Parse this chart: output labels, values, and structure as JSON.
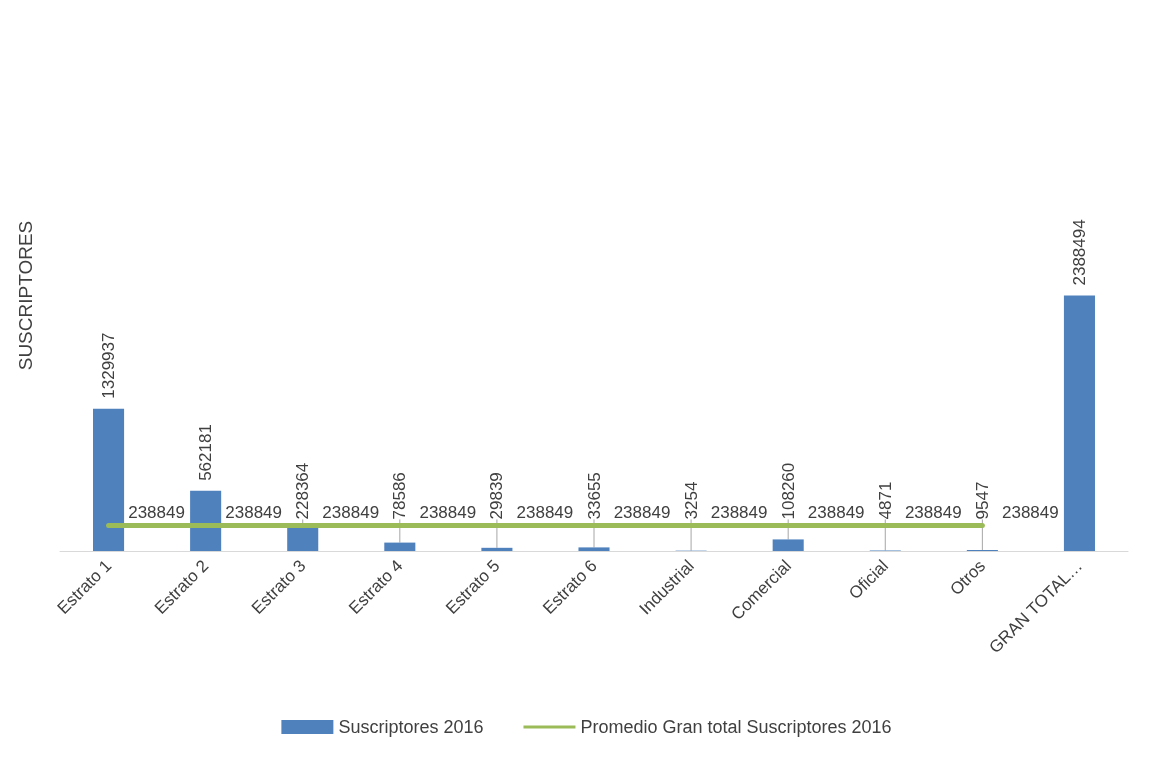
{
  "chart_data": {
    "type": "bar",
    "ylabel": "SUSCRIPTORES",
    "categories": [
      "Estrato 1",
      "Estrato 2",
      "Estrato 3",
      "Estrato 4",
      "Estrato 5",
      "Estrato 6",
      "Industrial",
      "Comercial",
      "Oficial",
      "Otros",
      "GRAN TOTAL…"
    ],
    "series": [
      {
        "name": "Suscriptores 2016",
        "color": "#4f81bd",
        "values": [
          1329937,
          562181,
          228364,
          78586,
          29839,
          33655,
          3254,
          108260,
          4871,
          9547,
          2388494
        ]
      },
      {
        "name": "Promedio Gran total Suscriptores 2016",
        "type": "line",
        "color": "#9bbb59",
        "values": [
          238849,
          238849,
          238849,
          238849,
          238849,
          238849,
          238849,
          238849,
          238849,
          238849,
          null
        ]
      }
    ],
    "data_labels": true,
    "grid": false,
    "legend": "bottom",
    "marker": "none"
  }
}
